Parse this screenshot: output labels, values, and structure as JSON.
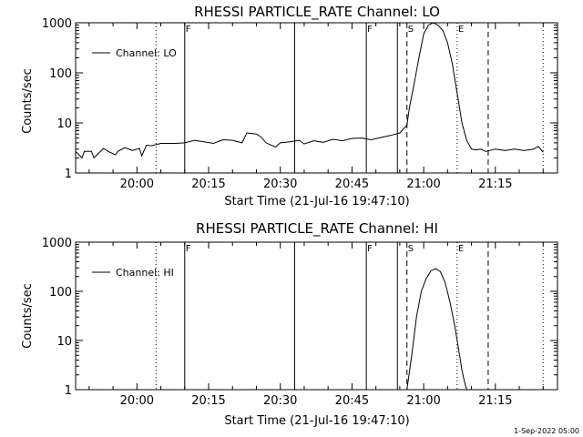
{
  "footer": {
    "timestamp": "1-Sep-2022 05:00"
  },
  "chart_data": [
    {
      "type": "line",
      "title": "RHESSI PARTICLE_RATE Channel: LO",
      "xlabel": "Start Time (21-Jul-16 19:47:10)",
      "ylabel": "Counts/sec",
      "yscale": "log",
      "ylim": [
        1,
        1000
      ],
      "xlim": [
        "19:47:10",
        "21:28:00"
      ],
      "x_ticks": [
        "20:00",
        "20:15",
        "20:30",
        "20:45",
        "21:00",
        "21:15"
      ],
      "y_ticks": [
        "1",
        "10",
        "100",
        "1000"
      ],
      "legend": {
        "entries": [
          "Channel: LO"
        ],
        "placement": "top-left"
      },
      "grid": false,
      "markers": [
        {
          "time": "20:04:00",
          "style": "dotted",
          "label": ""
        },
        {
          "time": "20:10:00",
          "style": "solid",
          "label": "F"
        },
        {
          "time": "20:33:00",
          "style": "solid",
          "label": ""
        },
        {
          "time": "20:48:00",
          "style": "solid",
          "label": "F"
        },
        {
          "time": "20:54:30",
          "style": "solid",
          "label": ""
        },
        {
          "time": "20:56:30",
          "style": "dashed",
          "label": "S"
        },
        {
          "time": "21:07:00",
          "style": "dotted",
          "label": "E"
        },
        {
          "time": "21:13:30",
          "style": "dashed",
          "label": ""
        },
        {
          "time": "21:25:00",
          "style": "dotted",
          "label": ""
        }
      ],
      "series": [
        {
          "name": "Channel: LO",
          "x": [
            "19:47:10",
            "19:48:30",
            "19:49:00",
            "19:50:30",
            "19:51:00",
            "19:53:00",
            "19:54:00",
            "19:55:30",
            "19:56:00",
            "19:57:30",
            "19:59:00",
            "20:00:30",
            "20:01:00",
            "20:02:00",
            "20:03:00",
            "20:05:00",
            "20:08:00",
            "20:10:00",
            "20:12:00",
            "20:14:00",
            "20:16:00",
            "20:18:00",
            "20:20:00",
            "20:22:00",
            "20:23:00",
            "20:25:00",
            "20:26:00",
            "20:27:00",
            "20:29:00",
            "20:30:00",
            "20:32:00",
            "20:34:00",
            "20:35:00",
            "20:37:00",
            "20:39:00",
            "20:41:00",
            "20:43:00",
            "20:45:00",
            "20:47:00",
            "20:49:00",
            "20:51:00",
            "20:53:00",
            "20:55:00",
            "20:56:30",
            "20:57:00",
            "20:58:00",
            "20:59:00",
            "21:00:00",
            "21:01:00",
            "21:02:00",
            "21:03:00",
            "21:04:00",
            "21:05:00",
            "21:06:00",
            "21:07:00",
            "21:08:00",
            "21:09:00",
            "21:10:00",
            "21:11:00",
            "21:12:00",
            "21:13:00",
            "21:15:00",
            "21:17:00",
            "21:19:00",
            "21:21:00",
            "21:23:00",
            "21:24:00",
            "21:25:00"
          ],
          "y": [
            2.7,
            2.0,
            2.7,
            2.7,
            2.0,
            3.1,
            2.7,
            2.3,
            2.7,
            3.2,
            2.8,
            3.1,
            2.2,
            3.6,
            3.5,
            3.9,
            3.9,
            4.0,
            4.5,
            4.2,
            3.9,
            4.6,
            4.5,
            4.0,
            6.3,
            6.0,
            5.2,
            4.0,
            3.3,
            4.0,
            4.2,
            4.5,
            3.8,
            4.4,
            4.1,
            4.7,
            4.4,
            4.9,
            5.0,
            4.6,
            5.1,
            5.6,
            6.3,
            9.0,
            20,
            60,
            200,
            600,
            900,
            1000,
            900,
            700,
            400,
            150,
            40,
            10,
            4.5,
            3.0,
            2.9,
            3.0,
            2.7,
            3.0,
            2.8,
            3.0,
            2.8,
            3.0,
            3.4,
            2.6
          ]
        }
      ]
    },
    {
      "type": "line",
      "title": "RHESSI PARTICLE_RATE Channel: HI",
      "xlabel": "Start Time (21-Jul-16 19:47:10)",
      "ylabel": "Counts/sec",
      "yscale": "log",
      "ylim": [
        1,
        1000
      ],
      "xlim": [
        "19:47:10",
        "21:28:00"
      ],
      "x_ticks": [
        "20:00",
        "20:15",
        "20:30",
        "20:45",
        "21:00",
        "21:15"
      ],
      "y_ticks": [
        "1",
        "10",
        "100",
        "1000"
      ],
      "legend": {
        "entries": [
          "Channel: HI"
        ],
        "placement": "top-left"
      },
      "grid": false,
      "markers": [
        {
          "time": "20:04:00",
          "style": "dotted",
          "label": ""
        },
        {
          "time": "20:10:00",
          "style": "solid",
          "label": "F"
        },
        {
          "time": "20:33:00",
          "style": "solid",
          "label": ""
        },
        {
          "time": "20:48:00",
          "style": "solid",
          "label": "F"
        },
        {
          "time": "20:54:30",
          "style": "solid",
          "label": ""
        },
        {
          "time": "20:56:30",
          "style": "dashed",
          "label": "S"
        },
        {
          "time": "21:07:00",
          "style": "dotted",
          "label": "E"
        },
        {
          "time": "21:13:30",
          "style": "dashed",
          "label": ""
        },
        {
          "time": "21:25:00",
          "style": "dotted",
          "label": ""
        }
      ],
      "series": [
        {
          "name": "Channel: HI",
          "x": [
            "20:56:30",
            "20:57:30",
            "20:58:30",
            "20:59:30",
            "21:00:30",
            "21:01:30",
            "21:02:30",
            "21:03:30",
            "21:04:30",
            "21:05:30",
            "21:06:30",
            "21:07:30",
            "21:08:00",
            "21:08:30",
            "21:09:00"
          ],
          "y": [
            1.0,
            5,
            30,
            100,
            180,
            260,
            290,
            250,
            150,
            60,
            20,
            5,
            2.5,
            1.5,
            1.0
          ]
        }
      ]
    }
  ]
}
